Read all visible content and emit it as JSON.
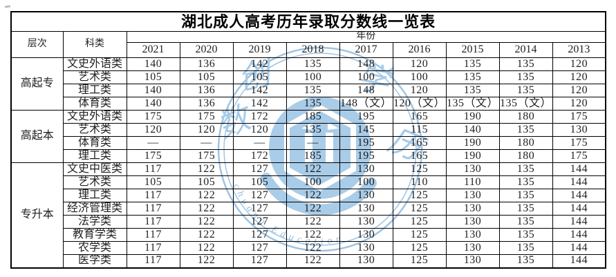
{
  "title": "湖北成人高考历年录取分数线一览表",
  "table": {
    "level_header": "层次",
    "category_header": "科类",
    "year_header": "年份",
    "years": [
      "2021",
      "2020",
      "2019",
      "2018",
      "2017",
      "2016",
      "2015",
      "2014",
      "2013"
    ],
    "groups": [
      {
        "level": "高起专",
        "rows": [
          {
            "category": "文史外语类",
            "values": [
              "140",
              "136",
              "142",
              "135",
              "148",
              "120",
              "135",
              "135",
              "120"
            ]
          },
          {
            "category": "艺术类",
            "values": [
              "105",
              "105",
              "105",
              "100",
              "100",
              "100",
              "135",
              "135",
              "120"
            ]
          },
          {
            "category": "理工类",
            "values": [
              "140",
              "136",
              "142",
              "135",
              "148",
              "120",
              "135",
              "135",
              "120"
            ]
          },
          {
            "category": "体育类",
            "values": [
              "140",
              "136",
              "142",
              "135",
              "148（文）",
              "120（文）",
              "135（文）",
              "135（文）",
              "120"
            ]
          }
        ]
      },
      {
        "level": "高起本",
        "rows": [
          {
            "category": "文史外语类",
            "values": [
              "175",
              "175",
              "172",
              "185",
              "195",
              "165",
              "190",
              "180",
              "175"
            ]
          },
          {
            "category": "艺术类",
            "values": [
              "120",
              "120",
              "120",
              "135",
              "145",
              "115",
              "140",
              "135",
              "130"
            ]
          },
          {
            "category": "体育类",
            "values": [
              "—",
              "—",
              "—",
              "—",
              "195",
              "165",
              "190",
              "180",
              "175"
            ]
          },
          {
            "category": "理工类",
            "values": [
              "175",
              "175",
              "172",
              "185",
              "195",
              "165",
              "190",
              "180",
              "175"
            ]
          }
        ]
      },
      {
        "level": "专升本",
        "rows": [
          {
            "category": "文史中医类",
            "values": [
              "117",
              "122",
              "127",
              "122",
              "130",
              "125",
              "130",
              "135",
              "144"
            ]
          },
          {
            "category": "艺术类",
            "values": [
              "105",
              "105",
              "105",
              "100",
              "100",
              "110",
              "110",
              "135",
              "144"
            ]
          },
          {
            "category": "理工类",
            "values": [
              "117",
              "122",
              "127",
              "122",
              "130",
              "125",
              "130",
              "135",
              "144"
            ]
          },
          {
            "category": "经济管理类",
            "values": [
              "117",
              "122",
              "127",
              "122",
              "130",
              "125",
              "130",
              "135",
              "144"
            ]
          },
          {
            "category": "法学类",
            "values": [
              "117",
              "122",
              "127",
              "122",
              "130",
              "125",
              "130",
              "135",
              "144"
            ]
          },
          {
            "category": "教育学类",
            "values": [
              "117",
              "122",
              "127",
              "122",
              "130",
              "125",
              "130",
              "135",
              "144"
            ]
          },
          {
            "category": "农学类",
            "values": [
              "117",
              "122",
              "127",
              "122",
              "130",
              "125",
              "130",
              "135",
              "144"
            ]
          },
          {
            "category": "医学类",
            "values": [
              "117",
              "122",
              "127",
              "122",
              "130",
              "125",
              "130",
              "135",
              "144"
            ]
          }
        ]
      }
    ]
  },
  "watermark": {
    "char_left": "数",
    "char_top_left": "创",
    "char_top_right": "学",
    "char_right": "历",
    "arc_text": "chuang Education",
    "color_fill": "#a5c9e7",
    "color_ring": "#9bc1e1"
  }
}
